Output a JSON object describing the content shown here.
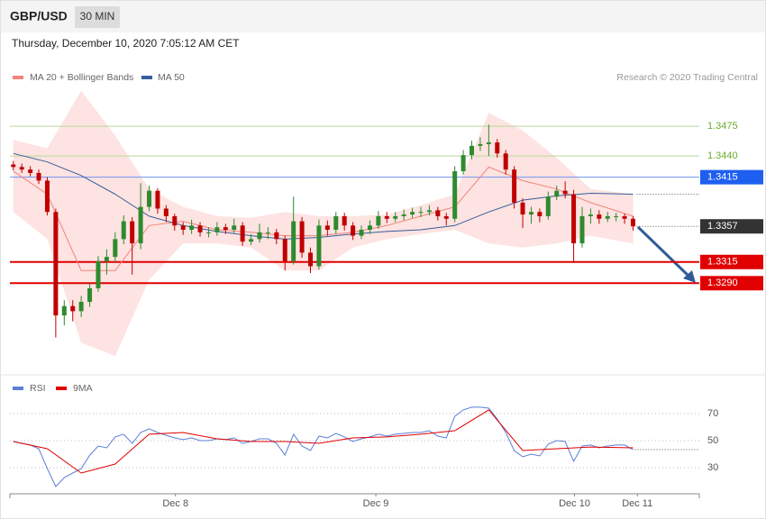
{
  "header": {
    "symbol": "GBP/USD",
    "interval": "30 MIN",
    "datetime": "Thursday, December 10, 2020 7:05:12 AM CET",
    "credit": "Research © 2020 Trading Central"
  },
  "chart_data": [
    {
      "type": "candlestick",
      "up_color": "#2e8b2e",
      "down_color": "#c00000",
      "band_color": "#fde3e1",
      "xlim": [
        -0.4,
        80.8
      ],
      "ylim": [
        1.3183,
        1.3523
      ],
      "open": [
        1.343,
        1.3427,
        1.3424,
        1.342,
        1.3411,
        1.3374,
        1.3252,
        1.3263,
        1.3257,
        1.3268,
        1.3284,
        1.3316,
        1.3321,
        1.3342,
        1.3363,
        1.3337,
        1.338,
        1.3399,
        1.3378,
        1.3369,
        1.3358,
        1.3353,
        1.3358,
        1.335,
        1.335,
        1.3356,
        1.3353,
        1.3358,
        1.3339,
        1.3342,
        1.335,
        1.335,
        1.3342,
        1.3316,
        1.3363,
        1.3326,
        1.331,
        1.3358,
        1.3353,
        1.3369,
        1.3358,
        1.3346,
        1.3353,
        1.3358,
        1.3369,
        1.3366,
        1.3369,
        1.3371,
        1.3374,
        1.3374,
        1.3376,
        1.3369,
        1.3366,
        1.3422,
        1.3441,
        1.3452,
        1.3454,
        1.3456,
        1.3443,
        1.3424,
        1.3385,
        1.3371,
        1.3374,
        1.3369,
        1.3392,
        1.3399,
        1.3395,
        1.3337,
        1.3369,
        1.3371,
        1.3366,
        1.3369,
        1.3369,
        1.3366
      ],
      "high": [
        1.3434,
        1.3431,
        1.3428,
        1.3424,
        1.3415,
        1.3378,
        1.327,
        1.327,
        1.3275,
        1.329,
        1.3322,
        1.333,
        1.335,
        1.337,
        1.3368,
        1.3408,
        1.3405,
        1.3402,
        1.3382,
        1.3372,
        1.3362,
        1.3365,
        1.3362,
        1.3356,
        1.3362,
        1.336,
        1.3366,
        1.3362,
        1.3348,
        1.336,
        1.3356,
        1.3354,
        1.3346,
        1.3392,
        1.3368,
        1.3332,
        1.3365,
        1.3364,
        1.3374,
        1.3373,
        1.3362,
        1.3358,
        1.3364,
        1.3375,
        1.3374,
        1.3374,
        1.3377,
        1.3379,
        1.338,
        1.3382,
        1.338,
        1.3373,
        1.3428,
        1.3447,
        1.3458,
        1.3462,
        1.3477,
        1.346,
        1.3447,
        1.3428,
        1.339,
        1.338,
        1.3378,
        1.3398,
        1.3405,
        1.341,
        1.34,
        1.338,
        1.3378,
        1.3376,
        1.3374,
        1.3373,
        1.3372,
        1.3369
      ],
      "low": [
        1.3423,
        1.342,
        1.3416,
        1.3407,
        1.337,
        1.3226,
        1.324,
        1.3245,
        1.325,
        1.3262,
        1.328,
        1.33,
        1.3315,
        1.3336,
        1.33,
        1.333,
        1.3375,
        1.3372,
        1.3362,
        1.3352,
        1.3347,
        1.3348,
        1.3345,
        1.3344,
        1.3346,
        1.3348,
        1.3349,
        1.3334,
        1.3335,
        1.3338,
        1.3342,
        1.3336,
        1.3305,
        1.3312,
        1.332,
        1.3302,
        1.3306,
        1.3346,
        1.3348,
        1.3352,
        1.3341,
        1.3342,
        1.3348,
        1.3354,
        1.3361,
        1.3362,
        1.3364,
        1.3367,
        1.3368,
        1.337,
        1.3364,
        1.3358,
        1.3362,
        1.3418,
        1.3436,
        1.3446,
        1.344,
        1.3438,
        1.3418,
        1.3378,
        1.3355,
        1.336,
        1.3362,
        1.3365,
        1.3388,
        1.339,
        1.3314,
        1.3332,
        1.336,
        1.336,
        1.3362,
        1.3363,
        1.336,
        1.3352
      ],
      "close": [
        1.3427,
        1.3424,
        1.342,
        1.3411,
        1.3374,
        1.3252,
        1.3263,
        1.3257,
        1.3268,
        1.3284,
        1.3316,
        1.3321,
        1.3342,
        1.3363,
        1.3337,
        1.338,
        1.3399,
        1.3378,
        1.3369,
        1.3358,
        1.3353,
        1.3358,
        1.335,
        1.335,
        1.3356,
        1.3353,
        1.3358,
        1.3339,
        1.3342,
        1.335,
        1.335,
        1.3342,
        1.3316,
        1.3363,
        1.3326,
        1.331,
        1.3358,
        1.3353,
        1.3369,
        1.3358,
        1.3346,
        1.3353,
        1.3358,
        1.3369,
        1.3366,
        1.3369,
        1.3371,
        1.3374,
        1.3374,
        1.3376,
        1.3369,
        1.3366,
        1.3422,
        1.3441,
        1.3452,
        1.3454,
        1.3456,
        1.3443,
        1.3424,
        1.3385,
        1.3371,
        1.3374,
        1.3369,
        1.3392,
        1.3399,
        1.3395,
        1.3337,
        1.3369,
        1.3371,
        1.3366,
        1.3369,
        1.3369,
        1.3366,
        1.3357
      ],
      "series": [
        {
          "name": "MA 20 + Bollinger Bands",
          "color": "#f4837d",
          "x": [
            0,
            4,
            8,
            12,
            16,
            20,
            24,
            28,
            32,
            36,
            40,
            44,
            48,
            52,
            56,
            60,
            64,
            68,
            73
          ],
          "values": [
            1.3422,
            1.3395,
            1.3305,
            1.3305,
            1.3358,
            1.3363,
            1.3353,
            1.335,
            1.3346,
            1.3346,
            1.335,
            1.3358,
            1.3369,
            1.338,
            1.3427,
            1.3411,
            1.3401,
            1.3385,
            1.3369
          ],
          "upper": [
            1.3459,
            1.3449,
            1.3517,
            1.3464,
            1.3401,
            1.338,
            1.3369,
            1.3367,
            1.3374,
            1.3369,
            1.3369,
            1.3371,
            1.3382,
            1.3395,
            1.3491,
            1.347,
            1.3438,
            1.3401,
            1.3395
          ],
          "lower": [
            1.3374,
            1.3342,
            1.322,
            1.3204,
            1.3294,
            1.3337,
            1.3337,
            1.3332,
            1.3305,
            1.3305,
            1.3332,
            1.3342,
            1.3348,
            1.3353,
            1.3337,
            1.3332,
            1.3337,
            1.3346,
            1.3337
          ]
        },
        {
          "name": "MA 50",
          "color": "#365e9c",
          "x": [
            0,
            4,
            8,
            12,
            16,
            20,
            24,
            28,
            32,
            36,
            40,
            44,
            48,
            52,
            56,
            60,
            64,
            68,
            73
          ],
          "values": [
            1.3443,
            1.3433,
            1.3417,
            1.3395,
            1.3369,
            1.3358,
            1.3351,
            1.3346,
            1.3342,
            1.3344,
            1.3348,
            1.3351,
            1.3353,
            1.3358,
            1.3374,
            1.3388,
            1.3393,
            1.3396,
            1.3395
          ]
        }
      ],
      "levels": {
        "values": [
          1.3475,
          1.344,
          1.3415,
          1.3357,
          1.3315,
          1.329
        ],
        "value_labels": [
          "1.3475",
          "1.3440",
          "1.3415",
          "1.3357",
          "1.3315",
          "1.3290"
        ],
        "colors": [
          "#6aaa2a",
          "#6aaa2a",
          "#1e5ff0",
          "#333333",
          "#e00000",
          "#e00000"
        ],
        "styles": [
          "plain",
          "plain",
          "boxed",
          "last",
          "heavy",
          "heavy"
        ]
      }
    },
    {
      "type": "line",
      "xlim": [
        -0.4,
        80.8
      ],
      "ylim": [
        12.7,
        79.3
      ],
      "yticks": [
        70,
        50,
        30
      ],
      "grid": true,
      "xticks": [
        {
          "value": 19.1,
          "label": "Dec 8"
        },
        {
          "value": 42.7,
          "label": "Dec 9"
        },
        {
          "value": 66.1,
          "label": "Dec 10"
        },
        {
          "value": 73.5,
          "label": "Dec 11"
        }
      ],
      "series": [
        {
          "name": "RSI",
          "color": "#5a7fd6",
          "values": [
            49.3,
            48,
            46.7,
            44,
            29.3,
            16,
            22.7,
            26,
            29.3,
            39.3,
            46,
            44.7,
            52.7,
            54.7,
            48,
            56,
            58.7,
            56,
            54,
            52,
            50.7,
            52,
            50,
            50,
            51.3,
            50.7,
            52,
            48,
            49.3,
            51.3,
            51.3,
            48,
            39.3,
            54.7,
            46,
            42.7,
            53.3,
            52,
            55.3,
            52.7,
            49.3,
            51.3,
            52.7,
            54.7,
            53.3,
            54.7,
            55.3,
            56,
            56,
            57.3,
            53.3,
            52,
            68,
            72.7,
            74.7,
            74.7,
            74,
            66,
            56,
            42.7,
            38,
            40,
            38.7,
            47.3,
            50,
            49.3,
            34.7,
            46,
            46.7,
            44.7,
            46,
            46.7,
            46.7,
            43.3
          ]
        },
        {
          "name": "9MA",
          "color": "#e00000",
          "x": [
            0,
            4,
            8,
            12,
            16,
            20,
            24,
            28,
            32,
            36,
            40,
            44,
            48,
            52,
            56,
            60,
            64,
            68,
            73
          ],
          "values": [
            49.3,
            44,
            26,
            32.7,
            54.7,
            56,
            51.3,
            49.3,
            49.3,
            48,
            52,
            52.7,
            54.7,
            57.3,
            72.7,
            42.7,
            44,
            45.3,
            44.7
          ]
        }
      ]
    }
  ]
}
